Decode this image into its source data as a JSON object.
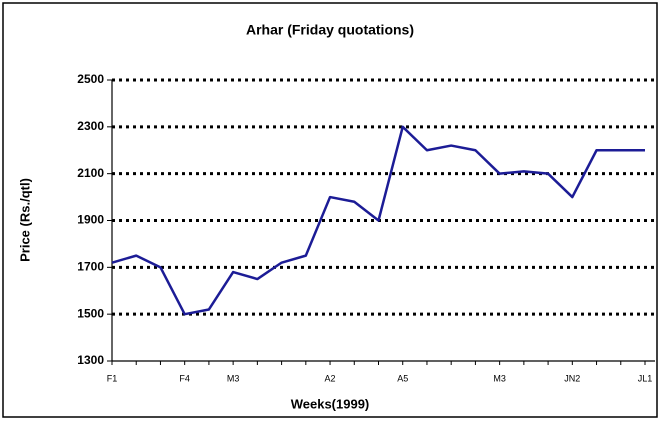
{
  "chart_data": {
    "type": "line",
    "title": "Arhar (Friday quotations)",
    "x_label": "Weeks(1999)",
    "y_label": "Price (Rs./qtl)",
    "categories": [
      "F1",
      null,
      null,
      "F4",
      null,
      "M3",
      null,
      null,
      null,
      "A2",
      null,
      null,
      "A5",
      null,
      null,
      null,
      "M3",
      null,
      null,
      "JN2",
      null,
      null,
      "JL1"
    ],
    "series": [
      {
        "name": "Arhar",
        "color": "#1c1c96",
        "values": [
          1720,
          1750,
          1700,
          1500,
          1520,
          1680,
          1650,
          1720,
          1750,
          2000,
          1980,
          1900,
          2300,
          2200,
          2220,
          2200,
          2100,
          2110,
          2100,
          2000,
          2200,
          2200,
          2200
        ]
      }
    ],
    "ylim": [
      1300,
      2500
    ],
    "yticks": [
      1300,
      1500,
      1700,
      1900,
      2100,
      2300,
      2500
    ],
    "grid": true
  }
}
